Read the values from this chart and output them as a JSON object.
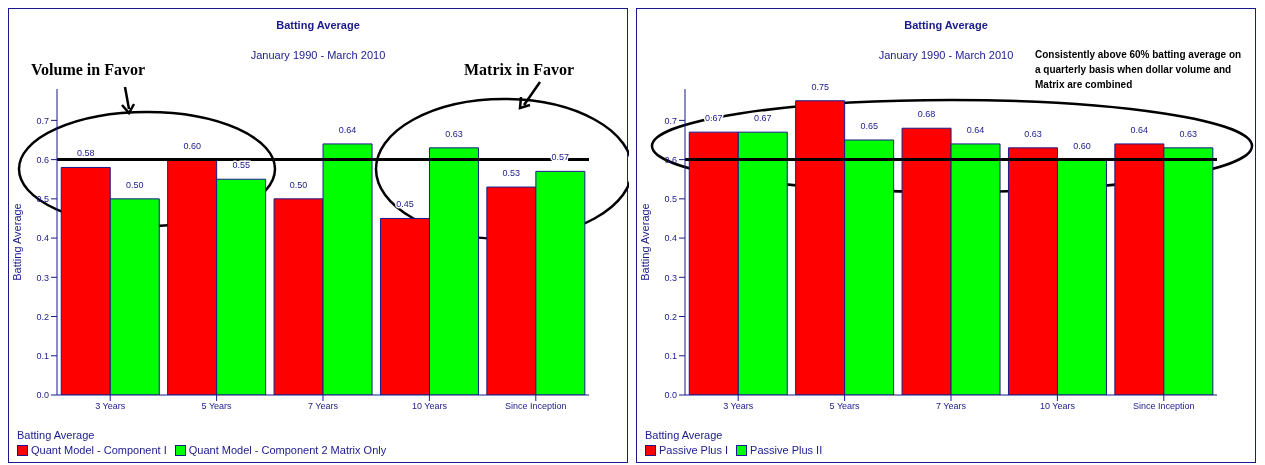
{
  "chart_data": [
    {
      "type": "bar",
      "title": "Batting Average",
      "subtitle": "January 1990 - March 2010",
      "ylabel": "Batting Average",
      "legend_title": "Batting Average",
      "legend": "bottom",
      "categories": [
        "3 Years",
        "5 Years",
        "7 Years",
        "10 Years",
        "Since Inception"
      ],
      "series": [
        {
          "name": "Quant Model - Component I",
          "color": "#ff0000",
          "values": [
            0.58,
            0.6,
            0.5,
            0.45,
            0.53
          ],
          "value_labels": [
            "0.58",
            "0.60",
            "0.50",
            "0.45",
            "0.53"
          ]
        },
        {
          "name": "Quant Model - Component 2 Matrix Only",
          "color": "#00ff00",
          "values": [
            0.5,
            0.55,
            0.64,
            0.63,
            0.57
          ],
          "value_labels": [
            "0.50",
            "0.55",
            "0.64",
            "0.63",
            "0.57"
          ]
        }
      ],
      "ylim": [
        0,
        0.78
      ],
      "yticks": [
        {
          "value": 0,
          "label": "0.0"
        },
        0.1,
        0.2,
        0.3,
        0.4,
        0.5,
        0.6,
        0.7
      ],
      "ref_lines": [
        {
          "axis": "y",
          "value": 0.6,
          "color": "#000000"
        }
      ],
      "annotations": [
        "Volume in Favor",
        "Matrix in Favor"
      ]
    },
    {
      "type": "bar",
      "title": "Batting Average",
      "subtitle": "January 1990 - March 2010",
      "ylabel": "Batting Average",
      "legend_title": "Batting Average",
      "legend": "bottom",
      "categories": [
        "3 Years",
        "5 Years",
        "7 Years",
        "10 Years",
        "Since Inception"
      ],
      "series": [
        {
          "name": "Passive Plus I",
          "color": "#ff0000",
          "values": [
            0.67,
            0.75,
            0.68,
            0.63,
            0.64
          ],
          "value_labels": [
            "0.67",
            "0.75",
            "0.68",
            "0.63",
            "0.64"
          ]
        },
        {
          "name": "Passive Plus II",
          "color": "#00ff00",
          "values": [
            0.67,
            0.65,
            0.64,
            0.6,
            0.63
          ],
          "value_labels": [
            "0.67",
            "0.65",
            "0.64",
            "0.60",
            "0.63"
          ]
        }
      ],
      "ylim": [
        0,
        0.78
      ],
      "yticks": [
        {
          "value": 0,
          "label": "0.0"
        },
        0.1,
        0.2,
        0.3,
        0.4,
        0.5,
        0.6,
        0.7
      ],
      "ref_lines": [
        {
          "axis": "y",
          "value": 0.6,
          "color": "#000000"
        }
      ],
      "annotations": [
        "Consistently above 60% batting average on a quarterly basis when dollar volume and Matrix are combined"
      ]
    }
  ]
}
